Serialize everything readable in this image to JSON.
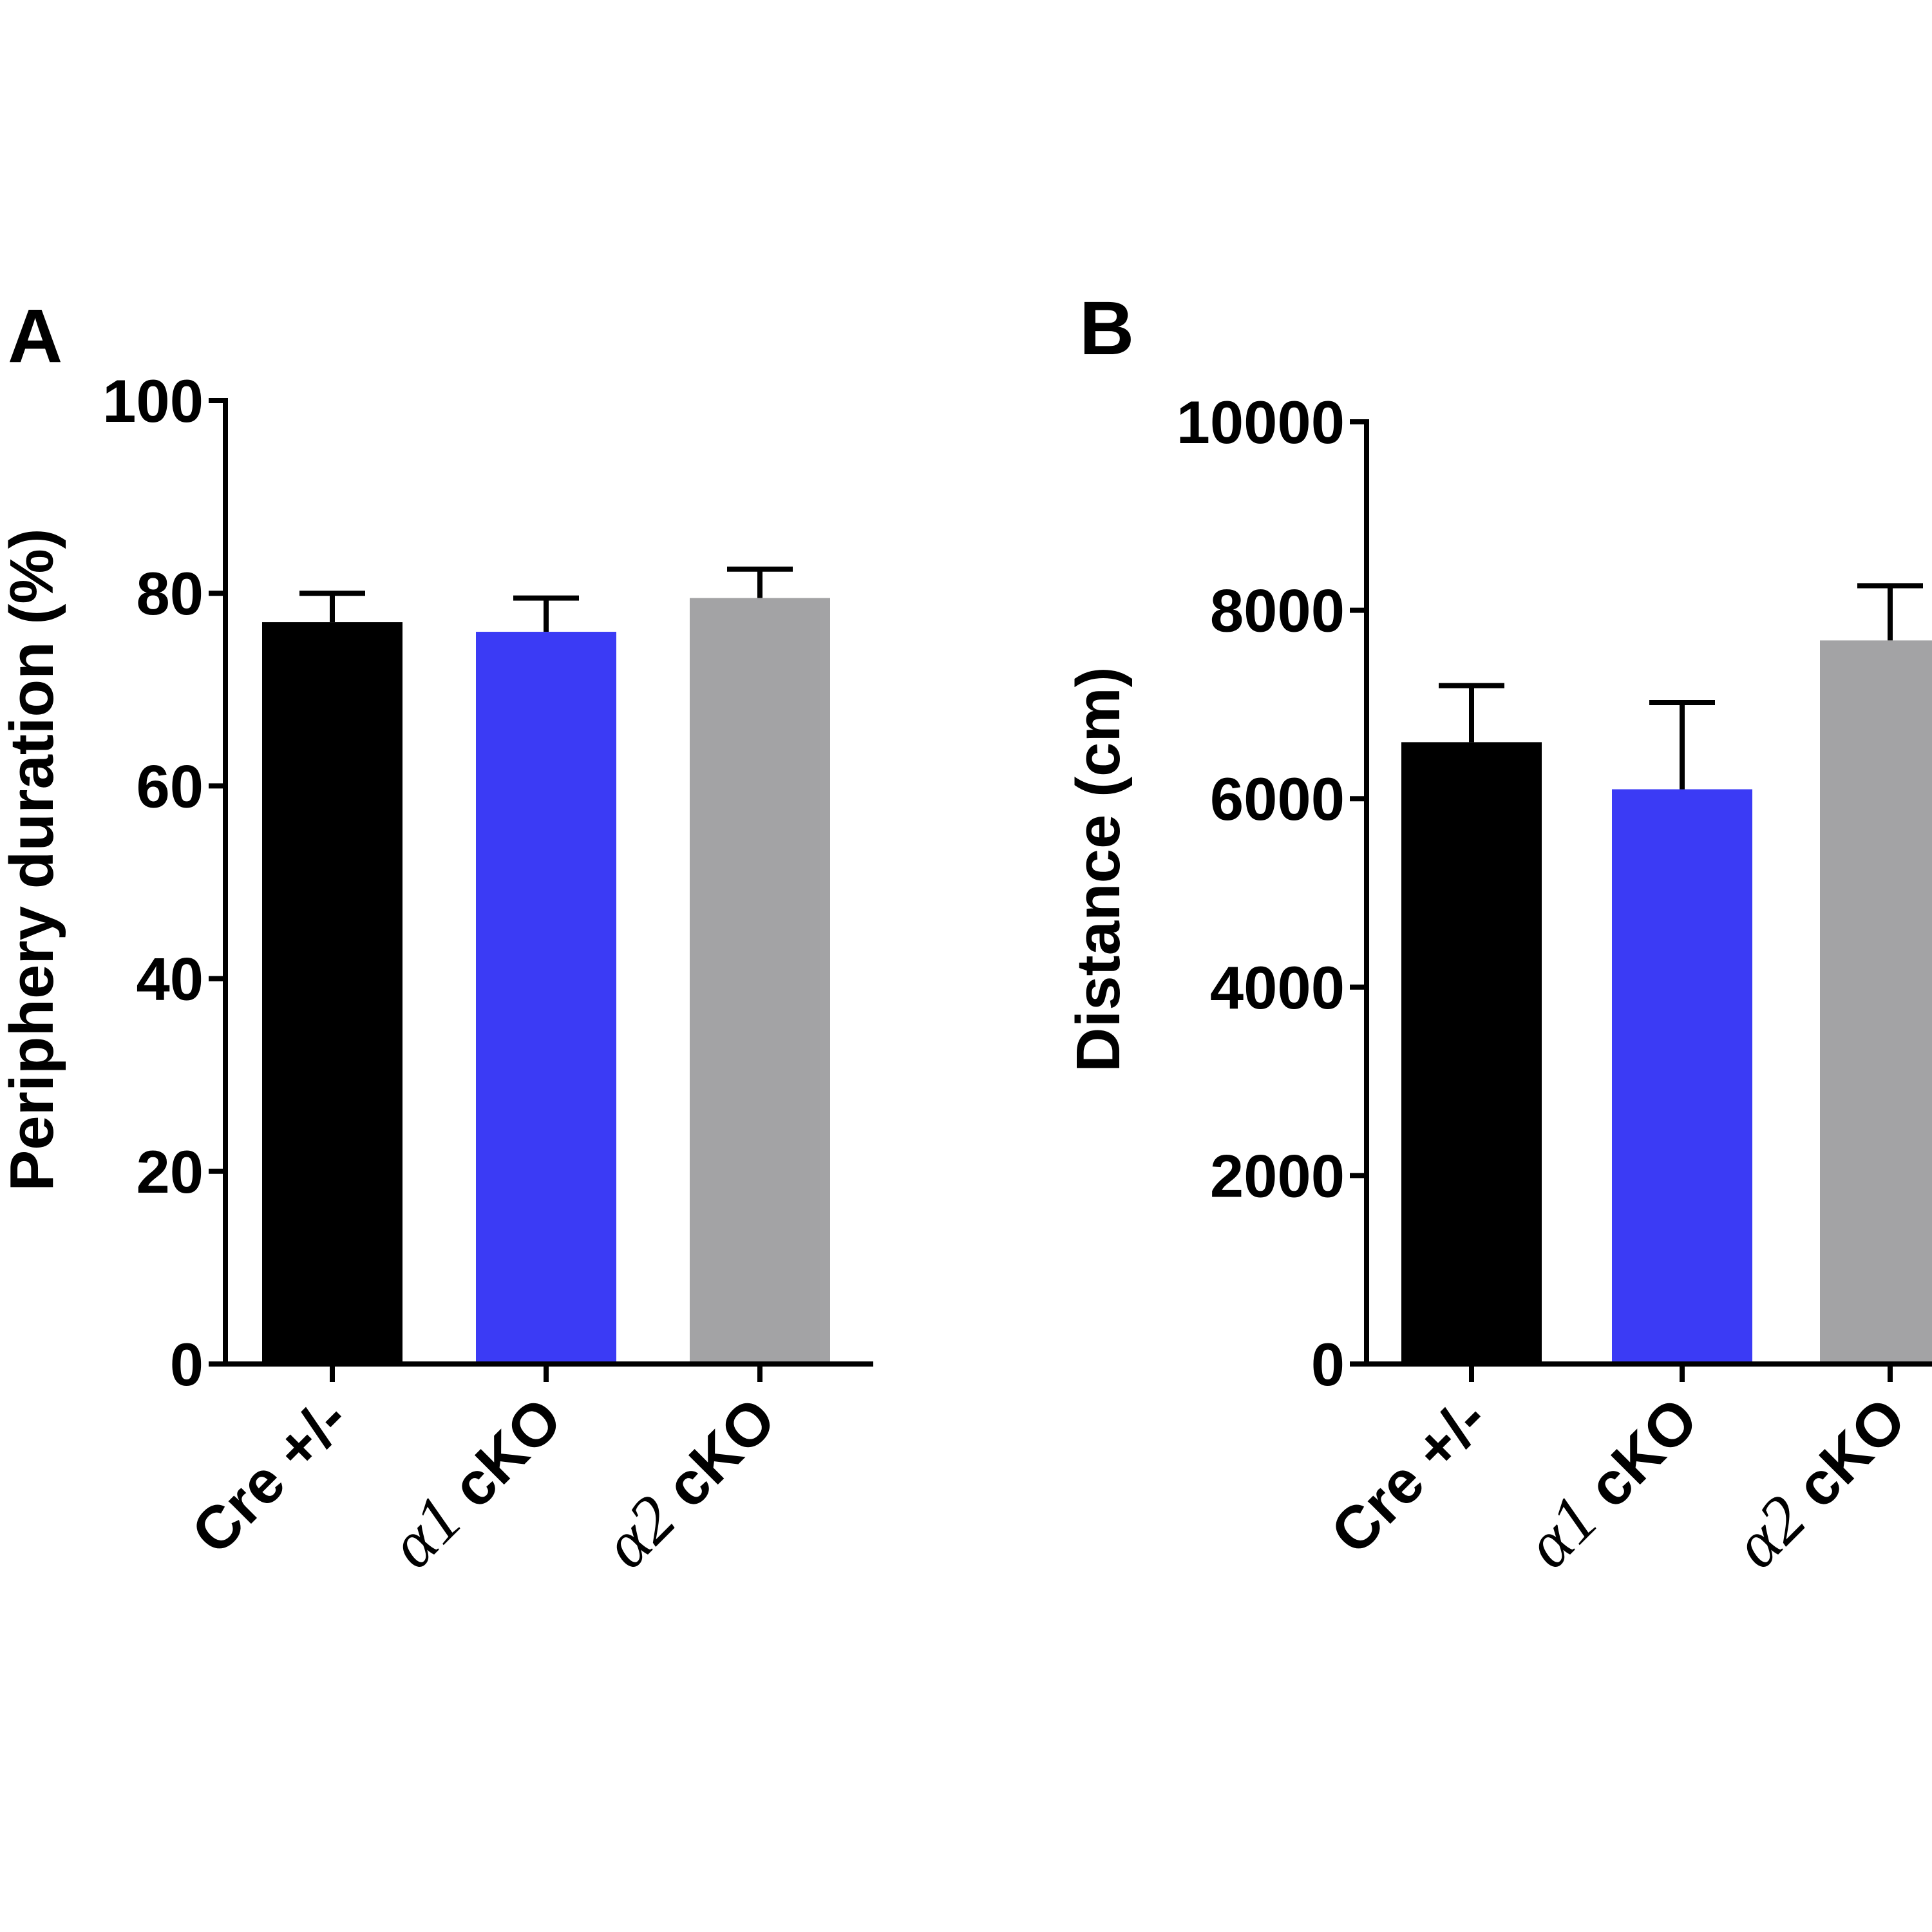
{
  "chart_data": [
    {
      "panel": "A",
      "type": "bar",
      "categories": [
        {
          "greek": "",
          "label": "Cre +/-"
        },
        {
          "greek": "α1",
          "label": " cKO"
        },
        {
          "greek": "α2",
          "label": " cKO"
        }
      ],
      "values": [
        77,
        76,
        79.5
      ],
      "errors": [
        3,
        3.5,
        3
      ],
      "colors": [
        "#000000",
        "#3b3bf5",
        "#a3a3a5"
      ],
      "ylabel": "Periphery duration (%)",
      "ylim": [
        0,
        100
      ],
      "yticks": [
        0,
        20,
        40,
        60,
        80,
        100
      ]
    },
    {
      "panel": "B",
      "type": "bar",
      "categories": [
        {
          "greek": "",
          "label": "Cre +/-"
        },
        {
          "greek": "α1",
          "label": " cKO"
        },
        {
          "greek": "α2",
          "label": " cKO"
        }
      ],
      "values": [
        6600,
        6100,
        7680
      ],
      "errors": [
        600,
        920,
        580
      ],
      "colors": [
        "#000000",
        "#3b3bf5",
        "#a3a3a5"
      ],
      "ylabel": "Distance (cm)",
      "ylim": [
        0,
        10000
      ],
      "yticks": [
        0,
        2000,
        4000,
        6000,
        8000,
        10000
      ]
    }
  ]
}
